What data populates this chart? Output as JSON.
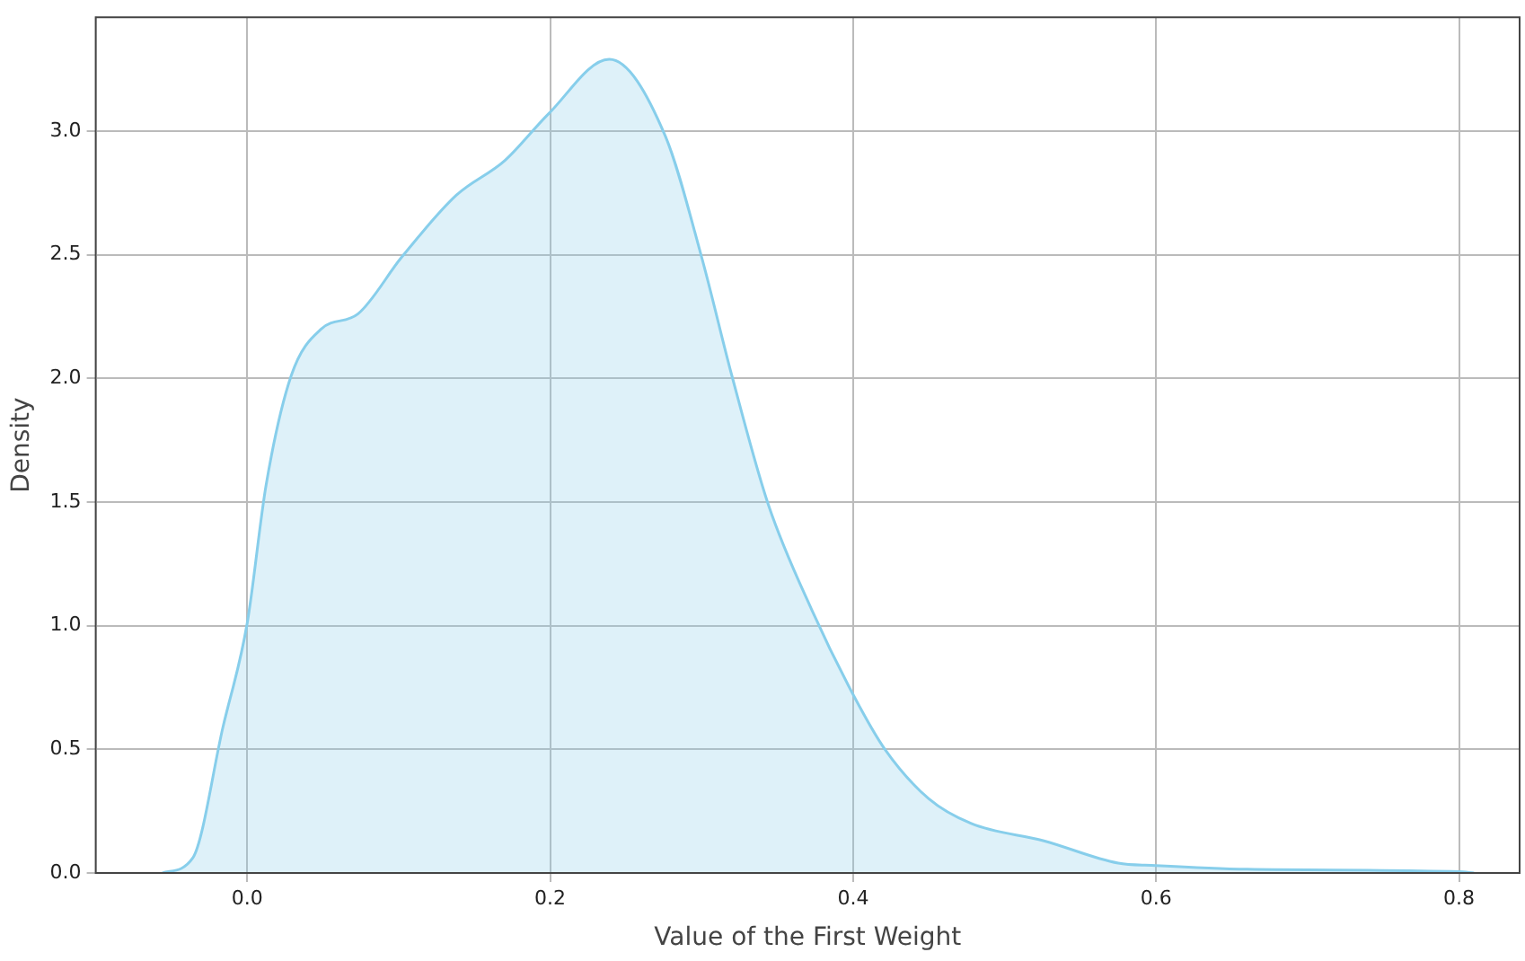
{
  "chart_data": {
    "type": "area",
    "xlabel": "Value of the First Weight",
    "ylabel": "Density",
    "x": [
      -0.056,
      -0.036,
      -0.016,
      0.0,
      0.0125,
      0.029,
      0.049,
      0.073,
      0.102,
      0.138,
      0.17,
      0.199,
      0.239,
      0.276,
      0.3,
      0.32,
      0.344,
      0.373,
      0.401,
      0.421,
      0.45,
      0.478,
      0.526,
      0.575,
      0.6,
      0.66,
      0.8,
      0.81
    ],
    "series": [
      {
        "color": "#87ceeb",
        "values": [
          0,
          0.06,
          0.59,
          1.01,
          1.57,
          2.01,
          2.2,
          2.26,
          2.49,
          2.74,
          2.88,
          3.07,
          3.29,
          2.98,
          2.49,
          2.01,
          1.49,
          1.06,
          0.71,
          0.5,
          0.3,
          0.2,
          0.13,
          0.04,
          0.03,
          0.015,
          0.005,
          0
        ]
      }
    ],
    "xlim": [
      -0.1,
      0.84
    ],
    "ylim": [
      0,
      3.46
    ],
    "xticks": [
      {
        "value": 0,
        "label": "0.0"
      },
      0.2,
      0.4,
      0.6,
      0.8
    ],
    "yticks": [
      {
        "value": 0,
        "label": "0.0"
      },
      0.5,
      {
        "value": 1,
        "label": "1.0"
      },
      1.5,
      {
        "value": 2,
        "label": "2.0"
      },
      2.5,
      {
        "value": 3,
        "label": "3.0"
      }
    ],
    "grid": true,
    "legend": false
  }
}
